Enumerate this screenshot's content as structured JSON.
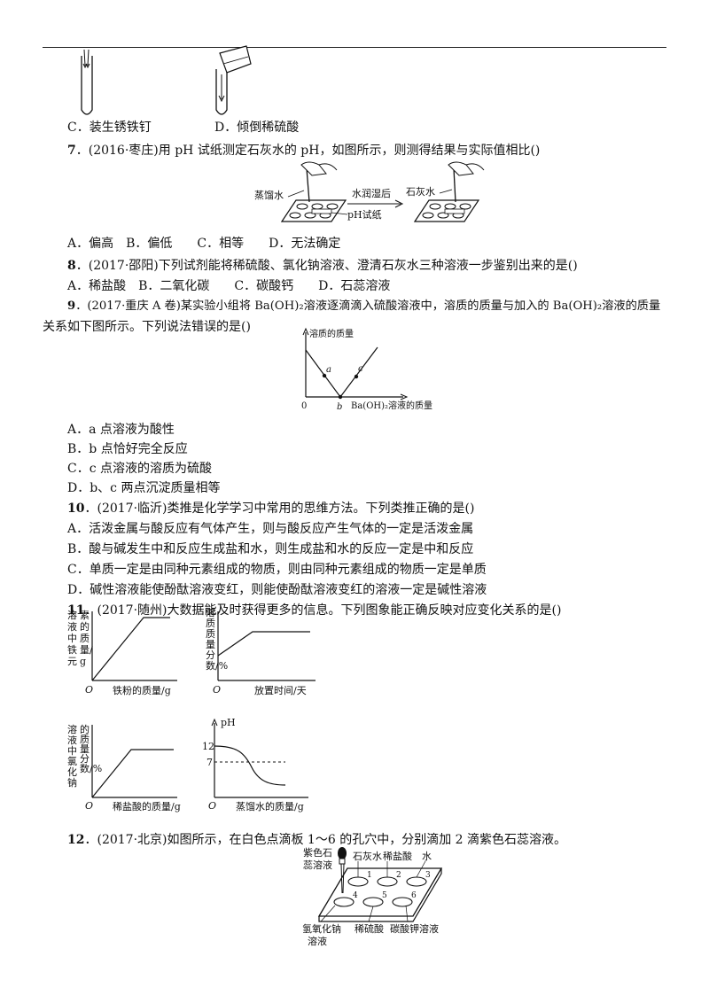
{
  "q6": {
    "option_c": "C．装生锈铁钉",
    "option_d": "D．倾倒稀硫酸"
  },
  "q7": {
    "number": "7",
    "stem": "．(2016·枣庄)用 pH 试纸测定石灰水的 pH，如图所示，则测得结果与实际值相比()",
    "fig_label_water": "蒸馏水",
    "fig_label_paper": "pH试纸",
    "fig_label_arrow": "水润湿后",
    "fig_label_lime": "石灰水",
    "options": "A．偏高　B．偏低　　C．相等　　D．无法确定"
  },
  "q8": {
    "number": "8",
    "stem": "．(2017·邵阳)下列试剂能将稀硫酸、氯化钠溶液、澄清石灰水三种溶液一步鉴别出来的是()",
    "options": "A．稀盐酸　B．二氧化碳　　C．碳酸钙　　D．石蕊溶液"
  },
  "q9": {
    "number": "9",
    "stem_line1": "．(2017·重庆 A 卷)某实验小组将 Ba(OH)₂溶液逐滴滴入硫酸溶液中，溶质的质量与加入的 Ba(OH)₂溶液的质量",
    "stem_line2": "关系如下图所示。下列说法错误的是()",
    "graph_ylabel": "溶质的质量",
    "graph_xlabel": "Ba(OH)₂溶液的质量",
    "graph_origin": "0",
    "point_a": "a",
    "point_b": "b",
    "point_c": "c",
    "option_a": "A．a 点溶液为酸性",
    "option_b": "B．b 点恰好完全反应",
    "option_c": "C．c 点溶液的溶质为硫酸",
    "option_d": "D．b、c 两点沉淀质量相等"
  },
  "q10": {
    "number": "10",
    "stem": "．(2017·临沂)类推是化学学习中常用的思维方法。下列类推正确的是()",
    "option_a": "A．活泼金属与酸反应有气体产生，则与酸反应产生气体的一定是活泼金属",
    "option_b": "B．酸与碱发生中和反应生成盐和水，则生成盐和水的反应一定是中和反应",
    "option_c": "C．单质一定是由同种元素组成的物质，则由同种元素组成的物质一定是单质",
    "option_d": "D．碱性溶液能使酚酞溶液变红，则能使酚酞溶液变红的溶液一定是碱性溶液"
  },
  "q11": {
    "number": "11",
    "stem": "．(2017·随州)大数据能及时获得更多的信息。下列图象能正确反映对应变化关系的是()",
    "graph1_ylabel_col1": "溶液中铁元",
    "graph1_ylabel_col2": "素的质量/g",
    "graph1_xlabel": "铁粉的质量/g",
    "graph2_ylabel": "溶质质量分数/%",
    "graph2_xlabel": "放置时间/天",
    "graph3_ylabel_col1": "溶液中氯化钠",
    "graph3_ylabel_col2": "的质量分数/%",
    "graph3_xlabel": "稀盐酸的质量/g",
    "graph4_ylabel": "pH",
    "graph4_tick_12": "12",
    "graph4_tick_7": "7",
    "graph4_xlabel": "蒸馏水的质量/g",
    "origin": "O"
  },
  "q12": {
    "number": "12",
    "stem": "．(2017·北京)如图所示，在白色点滴板 1～6 的孔穴中，分别滴加 2 滴紫色石蕊溶液。",
    "label_litmus1": "紫色石",
    "label_litmus2": "蕊溶液",
    "label_lime": "石灰水",
    "label_hcl": "稀盐酸",
    "label_water": "水",
    "label_naoh1": "氢氧化钠",
    "label_naoh2": "溶液",
    "label_h2so4": "稀硫酸",
    "label_k2co3": "碳酸钾溶液",
    "well_1": "1",
    "well_2": "2",
    "well_3": "3",
    "well_4": "4",
    "well_5": "5",
    "well_6": "6"
  }
}
